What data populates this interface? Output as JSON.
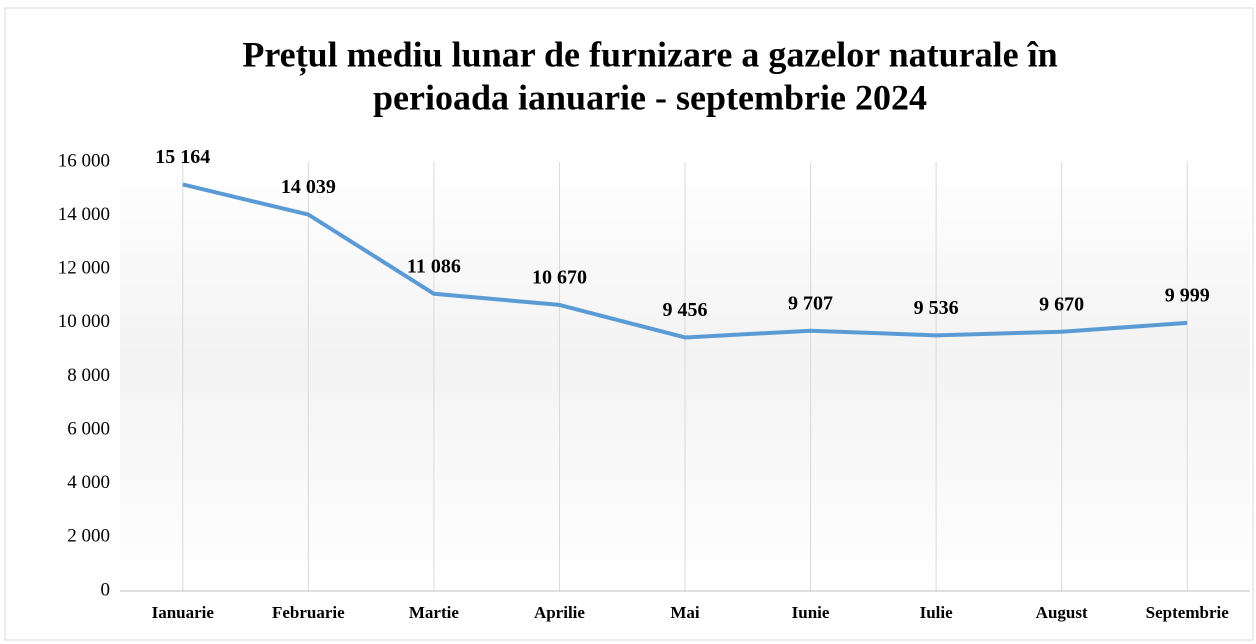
{
  "chart_data": {
    "type": "line",
    "title": [
      "Prețul mediu lunar de furnizare a gazelor naturale în",
      "perioada ianuarie - septembrie 2024"
    ],
    "categories": [
      "Ianuarie",
      "Februarie",
      "Martie",
      "Aprilie",
      "Mai",
      "Iunie",
      "Iulie",
      "August",
      "Septembrie"
    ],
    "values": [
      15164,
      14039,
      11086,
      10670,
      9456,
      9707,
      9536,
      9670,
      9999
    ],
    "value_labels": [
      "15 164",
      "14 039",
      "11 086",
      "10 670",
      "9 456",
      "9 707",
      "9 536",
      "9 670",
      "9 999"
    ],
    "color": "#5b9bd5",
    "ylim": [
      0,
      16000
    ],
    "yticks": [
      0,
      {
        "value": 2000,
        "label": "2 000"
      },
      {
        "value": 4000,
        "label": "4 000"
      },
      {
        "value": 6000,
        "label": "6 000"
      },
      {
        "value": 8000,
        "label": "8 000"
      },
      {
        "value": 10000,
        "label": "10 000"
      },
      {
        "value": 12000,
        "label": "12 000"
      },
      {
        "value": 14000,
        "label": "14 000"
      },
      {
        "value": 16000,
        "label": "16 000"
      }
    ],
    "grid": true
  }
}
